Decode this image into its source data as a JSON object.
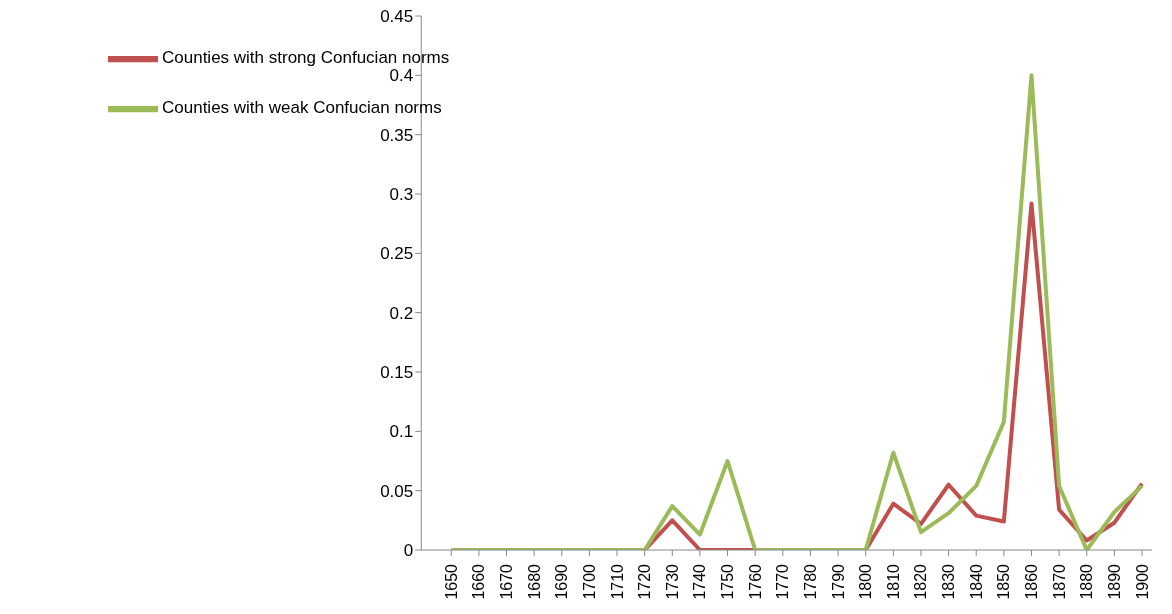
{
  "chart_data": {
    "type": "line",
    "categories": [
      "1650",
      "1660",
      "1670",
      "1680",
      "1690",
      "1700",
      "1710",
      "1720",
      "1730",
      "1740",
      "1750",
      "1760",
      "1770",
      "1780",
      "1790",
      "1800",
      "1810",
      "1820",
      "1830",
      "1840",
      "1850",
      "1860",
      "1870",
      "1880",
      "1890",
      "1900"
    ],
    "series": [
      {
        "name": "Counties with strong Confucian norms",
        "color": "#c0504d",
        "values": [
          null,
          null,
          null,
          null,
          null,
          null,
          null,
          0,
          0.025,
          0,
          0,
          0,
          null,
          null,
          null,
          0,
          0.039,
          0.022,
          0.055,
          0.029,
          0.024,
          0.292,
          0.034,
          0.008,
          0.023,
          0.056
        ]
      },
      {
        "name": "Counties with weak Confucian norms",
        "color": "#9bbb59",
        "values": [
          0,
          0,
          0,
          0,
          0,
          0,
          0,
          0,
          0.037,
          0.013,
          0.075,
          0,
          0,
          0,
          0,
          0,
          0.082,
          0.015,
          0.031,
          0.054,
          0.108,
          0.4,
          0.054,
          0,
          0.032,
          0.054
        ]
      }
    ],
    "ylim": [
      0,
      0.45
    ],
    "yticks": [
      0,
      0.05,
      0.1,
      0.15,
      0.2,
      0.25,
      0.3,
      0.35,
      0.4,
      0.45
    ],
    "grid": false,
    "legend": "top left",
    "marker": "none",
    "line_style": "solid"
  }
}
